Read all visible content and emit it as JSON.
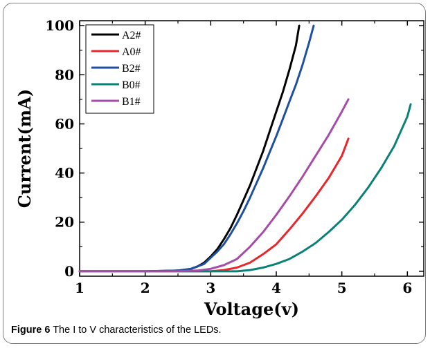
{
  "caption": {
    "label": "Figure 6",
    "text": "The I to V characteristics of the LEDs."
  },
  "chart_data": {
    "type": "line",
    "xlabel": "Voltage(v)",
    "ylabel": "Current(mA)",
    "xlim": [
      1,
      6.25
    ],
    "ylim": [
      -2,
      102
    ],
    "xticks": [
      1,
      2,
      3,
      4,
      5,
      6
    ],
    "yticks": [
      0,
      20,
      40,
      60,
      80,
      100
    ],
    "grid": false,
    "legend_position": "top-left",
    "series": [
      {
        "name": "A2#",
        "color": "#000000",
        "x": [
          1,
          2,
          2.5,
          2.7,
          2.8,
          2.9,
          3.0,
          3.1,
          3.2,
          3.3,
          3.4,
          3.5,
          3.6,
          3.7,
          3.8,
          3.9,
          4.0,
          4.1,
          4.2,
          4.3,
          4.35
        ],
        "y": [
          0,
          0,
          0.3,
          1,
          2,
          3.5,
          6,
          9,
          13,
          17.5,
          23,
          29,
          35,
          42,
          49,
          57,
          65,
          73,
          82,
          92,
          100
        ]
      },
      {
        "name": "A0#",
        "color": "#e8262b",
        "x": [
          1,
          3.0,
          3.2,
          3.4,
          3.6,
          3.8,
          4.0,
          4.2,
          4.4,
          4.6,
          4.8,
          5.0,
          5.1
        ],
        "y": [
          0,
          0,
          0.5,
          1.5,
          3.5,
          7,
          11,
          17,
          23.5,
          30.5,
          38,
          47,
          54
        ]
      },
      {
        "name": "B2#",
        "color": "#1f4fa0",
        "x": [
          1,
          2,
          2.5,
          2.7,
          2.9,
          3.0,
          3.1,
          3.2,
          3.3,
          3.4,
          3.5,
          3.6,
          3.7,
          3.8,
          3.9,
          4.0,
          4.1,
          4.2,
          4.3,
          4.4,
          4.5,
          4.57
        ],
        "y": [
          0,
          0,
          0.3,
          1,
          3,
          5.5,
          8,
          11,
          15,
          19.5,
          24.5,
          30,
          36,
          42,
          48.5,
          55,
          62,
          69,
          76,
          84,
          93,
          100
        ]
      },
      {
        "name": "B0#",
        "color": "#0a8077",
        "x": [
          1,
          3.4,
          3.6,
          3.8,
          4.0,
          4.2,
          4.4,
          4.6,
          4.8,
          5.0,
          5.2,
          5.4,
          5.6,
          5.8,
          6.0,
          6.05
        ],
        "y": [
          0,
          0,
          0.5,
          1.5,
          3,
          5,
          8,
          11.5,
          16,
          21,
          27,
          34,
          42,
          51,
          63,
          68
        ]
      },
      {
        "name": "B1#",
        "color": "#a64ca8",
        "x": [
          1,
          2.5,
          2.8,
          3.0,
          3.2,
          3.4,
          3.6,
          3.8,
          4.0,
          4.2,
          4.4,
          4.6,
          4.8,
          5.0,
          5.1
        ],
        "y": [
          0,
          0,
          0.3,
          1,
          2.5,
          5,
          10,
          16,
          23,
          30.5,
          38.5,
          47,
          55.5,
          65,
          70
        ]
      }
    ]
  }
}
